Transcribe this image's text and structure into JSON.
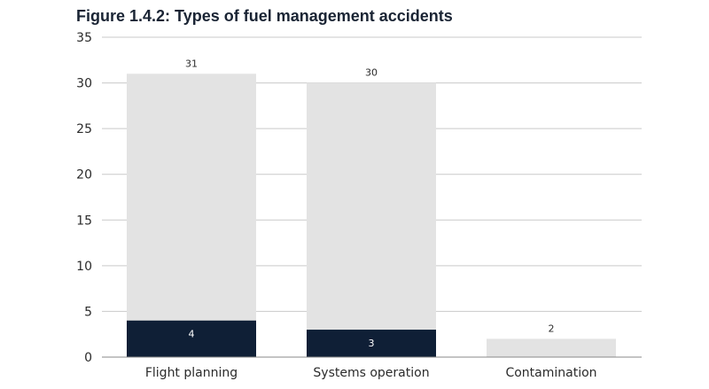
{
  "chart_data": {
    "type": "bar",
    "title": "Figure 1.4.2: Types of fuel management accidents",
    "xlabel": "",
    "ylabel": "",
    "categories": [
      "Flight planning",
      "Systems operation",
      "Contamination"
    ],
    "series": [
      {
        "values": [
          31,
          30,
          2
        ],
        "color": "#e3e3e3",
        "label_color": "#2b2b2b"
      },
      {
        "values": [
          4,
          3,
          null
        ],
        "color": "#0f1f36",
        "label_color": "#ffffff"
      }
    ],
    "ylim": [
      0,
      35
    ],
    "yticks": [
      0,
      5,
      10,
      15,
      20,
      25,
      30,
      35
    ],
    "grid": true,
    "grid_color": "#c9c9c9"
  }
}
